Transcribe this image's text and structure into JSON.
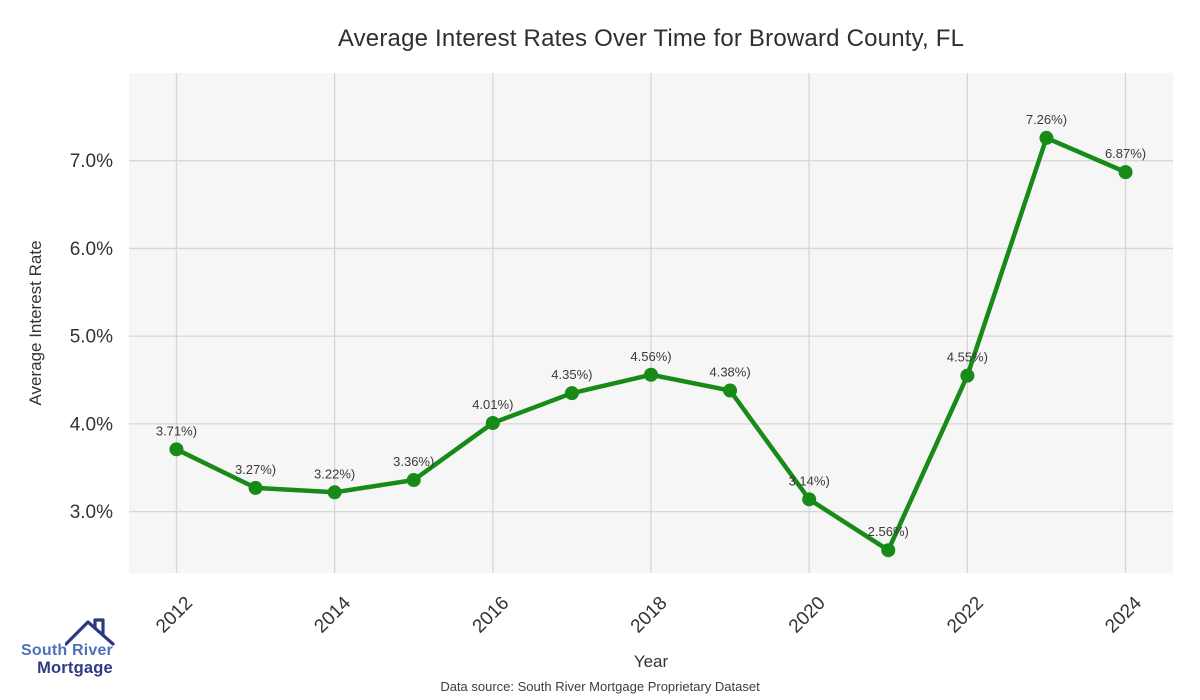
{
  "page": {
    "title": "Average Interest Rates Over Time for Broward County, FL",
    "footer": "Data source: South River Mortgage Proprietary Dataset"
  },
  "logo": {
    "line1": "South River",
    "line2": "Mortgage"
  },
  "chart_data": {
    "type": "line",
    "title": "Average Interest Rates Over Time for Broward County, FL",
    "xlabel": "Year",
    "ylabel": "Average Interest Rate",
    "x": [
      2012,
      2013,
      2014,
      2015,
      2016,
      2017,
      2018,
      2019,
      2020,
      2021,
      2022,
      2023,
      2024
    ],
    "values": [
      3.71,
      3.27,
      3.22,
      3.36,
      4.01,
      4.35,
      4.56,
      4.38,
      3.14,
      2.56,
      4.55,
      7.26,
      6.87
    ],
    "point_labels": [
      "3.71%)",
      "3.27%)",
      "3.22%)",
      "3.36%)",
      "4.01%)",
      "4.35%)",
      "4.56%)",
      "4.38%)",
      "3.14%)",
      "2.56%)",
      "4.55%)",
      "7.26%)",
      "6.87%)"
    ],
    "yticks": {
      "values": [
        3,
        4,
        5,
        6,
        7
      ],
      "labels": [
        "3.0%",
        "4.0%",
        "5.0%",
        "6.0%",
        "7.0%"
      ]
    },
    "xticks": {
      "values": [
        2012,
        2014,
        2016,
        2018,
        2020,
        2022,
        2024
      ],
      "labels": [
        "2012",
        "2014",
        "2016",
        "2018",
        "2020",
        "2022",
        "2024"
      ]
    },
    "xlim": [
      2011.4,
      2024.6
    ],
    "ylim": [
      2.3,
      8.0
    ],
    "grid": true,
    "legend": "none",
    "colors": {
      "line": "#178a17",
      "marker": "#178a17",
      "plot_bg": "#f6f6f6",
      "grid": "#d6d6d6",
      "tick_text": "#333333",
      "label_text": "#3a3a3a",
      "title_text": "#2f2f2f",
      "logo_navy": "#2c3880",
      "logo_blue": "#4d72b8"
    }
  }
}
